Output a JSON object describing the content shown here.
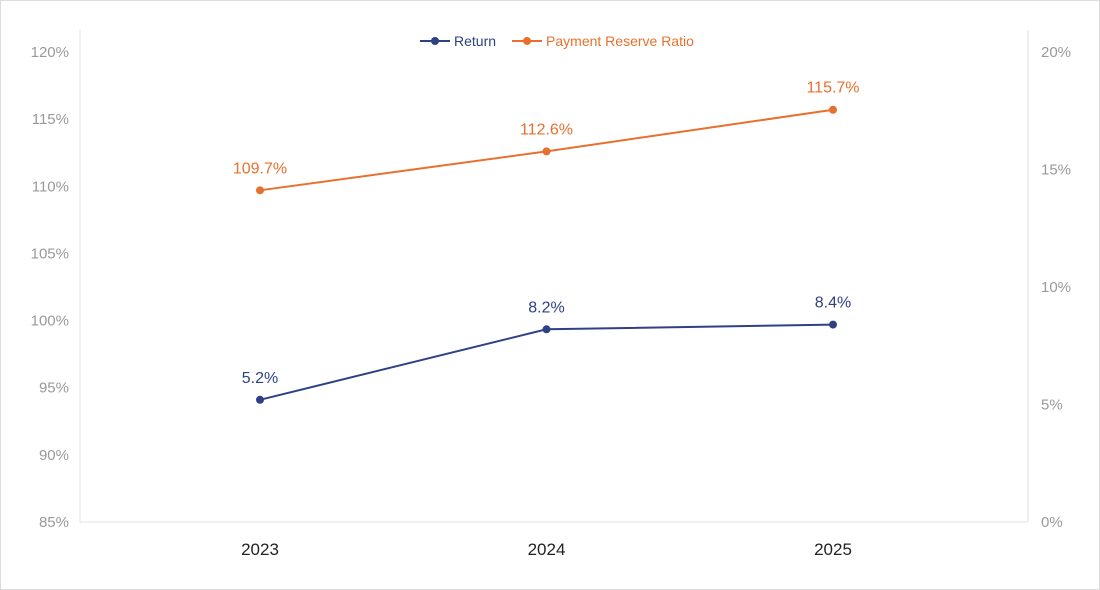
{
  "chart_data": {
    "type": "line",
    "categories": [
      "2023",
      "2024",
      "2025"
    ],
    "series": [
      {
        "name": "Return",
        "axis": "right",
        "values": [
          5.2,
          8.2,
          8.4
        ],
        "labels": [
          "5.2%",
          "8.2%",
          "8.4%"
        ],
        "color": "#2e4185"
      },
      {
        "name": "Payment Reserve Ratio",
        "axis": "left",
        "values": [
          109.7,
          112.6,
          115.7
        ],
        "labels": [
          "109.7%",
          "112.6%",
          "115.7%"
        ],
        "color": "#e8702e"
      }
    ],
    "left_axis": {
      "ylim": [
        85,
        120
      ],
      "ticks": [
        "85%",
        "90%",
        "95%",
        "100%",
        "105%",
        "110%",
        "115%",
        "120%"
      ]
    },
    "right_axis": {
      "ylim": [
        0,
        20
      ],
      "ticks": [
        "0%",
        "5%",
        "10%",
        "15%",
        "20%"
      ]
    },
    "legend": "top-center",
    "grid": false
  }
}
